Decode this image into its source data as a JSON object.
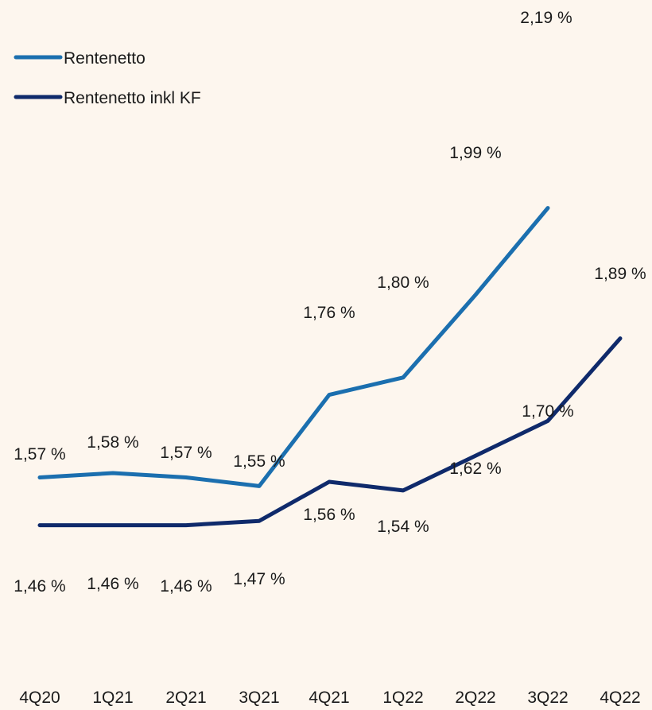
{
  "chart_data": {
    "type": "line",
    "categories": [
      "4Q20",
      "1Q21",
      "2Q21",
      "3Q21",
      "4Q21",
      "1Q22",
      "2Q22",
      "3Q22",
      "4Q22"
    ],
    "series": [
      {
        "name": "Rentenetto",
        "color": "#1b6faf",
        "values": [
          1.57,
          1.58,
          1.57,
          1.55,
          1.76,
          1.8,
          1.99,
          2.19,
          null
        ],
        "labels": [
          "1,57 %",
          "1,58 %",
          "1,57 %",
          "1,55 %",
          "1,76 %",
          "1,80 %",
          "1,99 %",
          "2,19 %",
          ""
        ]
      },
      {
        "name": "Rentenetto inkl KF",
        "color": "#0f2a6b",
        "values": [
          1.46,
          1.46,
          1.46,
          1.47,
          1.56,
          1.54,
          1.62,
          1.7,
          1.89
        ],
        "labels": [
          "1,46 %",
          "1,46 %",
          "1,46 %",
          "1,47 %",
          "1,56 %",
          "1,54 %",
          "1,62 %",
          "1,70 %",
          "1,89 %"
        ]
      }
    ],
    "legend_position": "top-left",
    "grid": false
  }
}
